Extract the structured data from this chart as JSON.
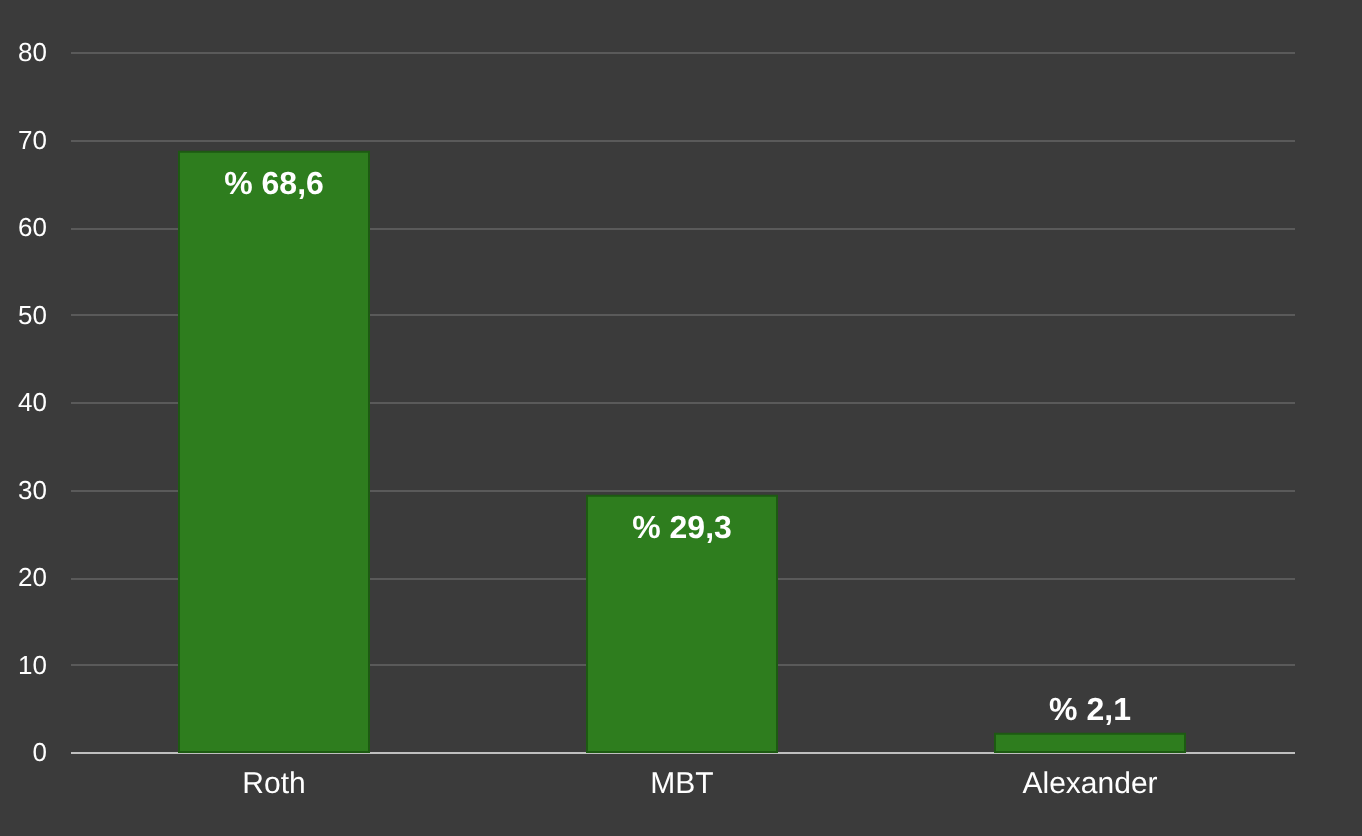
{
  "chart_data": {
    "type": "bar",
    "categories": [
      "Roth",
      "MBT",
      "Alexander"
    ],
    "values": [
      68.6,
      29.3,
      2.1
    ],
    "color": "#2e7d1e",
    "value_labels": [
      "% 68,6",
      "% 29,3",
      "% 2,1"
    ],
    "ylim": [
      0,
      80
    ],
    "yticks": [
      0,
      10,
      20,
      30,
      40,
      50,
      60,
      70,
      80
    ],
    "grid": "y"
  }
}
